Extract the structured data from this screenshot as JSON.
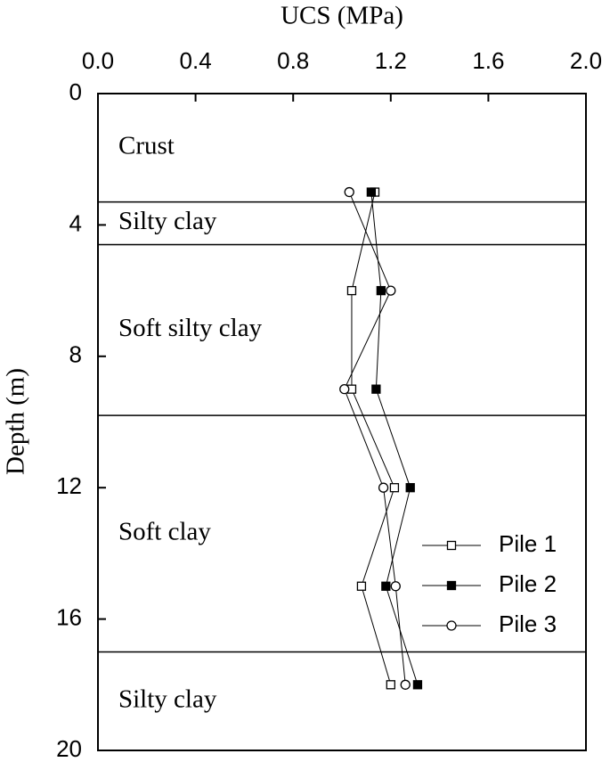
{
  "chart_data": {
    "type": "scatter-line",
    "xlabel": "UCS (MPa)",
    "ylabel": "Depth (m)",
    "xlim": [
      0,
      2
    ],
    "xticks": [
      {
        "value": 0,
        "label": "0.0"
      },
      0.4,
      0.8,
      1.2,
      1.6,
      {
        "value": 2,
        "label": "2.0"
      }
    ],
    "ylim": [
      0,
      20
    ],
    "yticks": [
      0,
      4,
      8,
      12,
      16,
      20
    ],
    "y_inverted": true,
    "x_axis_position": "top",
    "depth": [
      3,
      6,
      9,
      12,
      15,
      18
    ],
    "series": [
      {
        "name": "Pile 1",
        "color": "#000000",
        "marker": "open-square",
        "values": [
          1.135,
          1.04,
          1.04,
          1.215,
          1.08,
          1.2
        ]
      },
      {
        "name": "Pile 2",
        "color": "#000000",
        "marker": "filled-square",
        "values": [
          1.12,
          1.16,
          1.14,
          1.28,
          1.18,
          1.31
        ]
      },
      {
        "name": "Pile 3",
        "color": "#000000",
        "marker": "open-circle",
        "values": [
          1.03,
          1.2,
          1.01,
          1.17,
          1.22,
          1.26
        ]
      }
    ],
    "layer_boundaries": [
      3.3,
      4.6,
      9.8,
      17.0
    ],
    "layers": [
      "Crust",
      "Silty clay",
      "Soft silty clay",
      "Soft clay",
      "Silty clay"
    ],
    "legend": "lower right"
  }
}
